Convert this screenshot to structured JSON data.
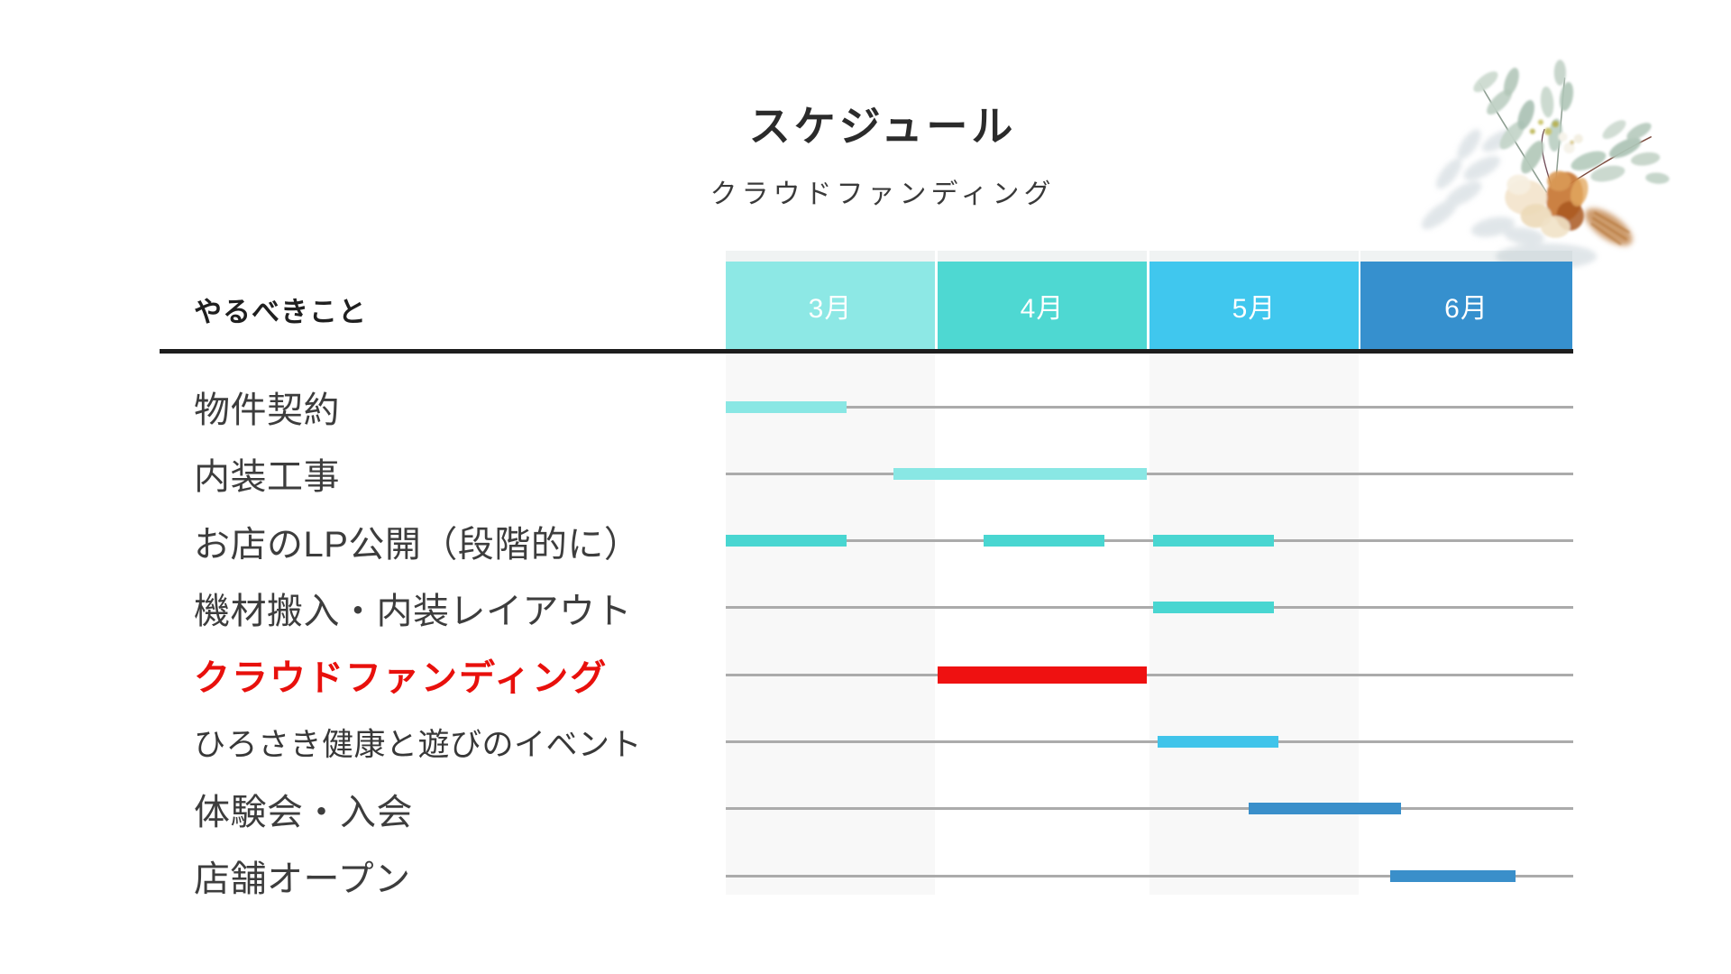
{
  "page": {
    "title": "スケジュール",
    "subtitle": "クラウドファンディング"
  },
  "table": {
    "tasks_header": "やるべきこと"
  },
  "colors": {
    "month_march": "#8DE8E5",
    "month_april": "#4ED8D2",
    "month_may": "#40C7EE",
    "month_june": "#3690CE",
    "bar_light_teal": "#89E7E4",
    "bar_teal": "#49D6D1",
    "bar_sky": "#40C4EA",
    "bar_blue": "#3A8FCA",
    "bar_red": "#EF1111",
    "emphasis_text": "#E8100C",
    "grid_line": "#ABABAB",
    "divider": "#1D1D1D",
    "stripe": "#F8F8F8"
  },
  "chart_data": {
    "type": "gantt",
    "title": "スケジュール",
    "subtitle": "クラウドファンディング",
    "columns": [
      "3月",
      "4月",
      "5月",
      "6月"
    ],
    "column_color_keys": [
      "month_march",
      "month_april",
      "month_may",
      "month_june"
    ],
    "striped_columns": [
      0,
      2
    ],
    "axis_note": "bar positions in month units: 0 = start of 3月 column, 4 = end of 6月 column",
    "tasks": [
      {
        "label": "物件契約",
        "bars": [
          {
            "start": 0.0,
            "end": 0.57,
            "color_key": "bar_light_teal"
          }
        ]
      },
      {
        "label": "内装工事",
        "bars": [
          {
            "start": 0.79,
            "end": 1.99,
            "color_key": "bar_light_teal"
          }
        ]
      },
      {
        "label": "お店のLP公開（段階的に）",
        "bars": [
          {
            "start": 0.0,
            "end": 0.57,
            "color_key": "bar_teal"
          },
          {
            "start": 1.22,
            "end": 1.79,
            "color_key": "bar_teal"
          },
          {
            "start": 2.02,
            "end": 2.59,
            "color_key": "bar_teal"
          }
        ]
      },
      {
        "label": "機材搬入・内装レイアウト",
        "bars": [
          {
            "start": 2.02,
            "end": 2.59,
            "color_key": "bar_teal"
          }
        ]
      },
      {
        "label": "クラウドファンディング",
        "emphasis": true,
        "bars": [
          {
            "start": 1.0,
            "end": 1.99,
            "color_key": "bar_red",
            "thick": true
          }
        ]
      },
      {
        "label": "ひろさき健康と遊びのイベント",
        "small": true,
        "bars": [
          {
            "start": 2.04,
            "end": 2.61,
            "color_key": "bar_sky"
          }
        ]
      },
      {
        "label": "体験会・入会",
        "bars": [
          {
            "start": 2.47,
            "end": 3.19,
            "color_key": "bar_blue"
          }
        ]
      },
      {
        "label": "店舗オープン",
        "bars": [
          {
            "start": 3.14,
            "end": 3.73,
            "color_key": "bar_blue"
          }
        ]
      }
    ]
  }
}
